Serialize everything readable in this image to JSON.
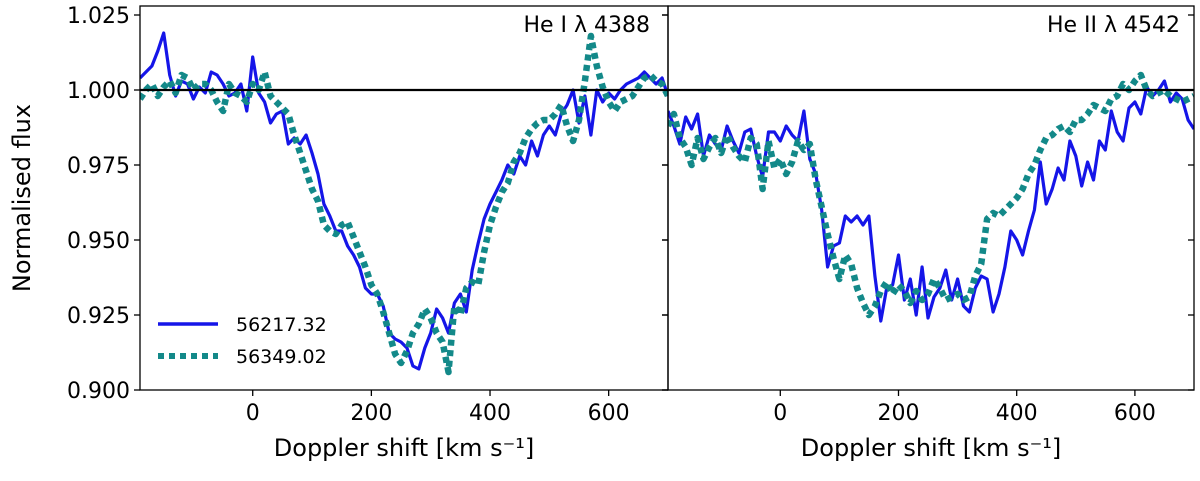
{
  "chart_data": [
    {
      "type": "line",
      "title": "He I λ 4388",
      "xlabel": "Doppler shift [km s⁻¹]",
      "ylabel": "Normalised flux",
      "xlim": [
        -190,
        700
      ],
      "ylim": [
        0.9,
        1.028
      ],
      "xticks": [
        0,
        200,
        400,
        600
      ],
      "yticks": [
        0.9,
        0.925,
        0.95,
        0.975,
        1.0,
        1.025
      ],
      "ytick_labels": [
        "0.900",
        "0.925",
        "0.950",
        "0.975",
        "1.000",
        "1.025"
      ],
      "reference_line": 1.0,
      "series": [
        {
          "name": "56217.32",
          "color": "#1515e8",
          "style": "solid",
          "x": [
            -190,
            -170,
            -160,
            -150,
            -140,
            -130,
            -120,
            -110,
            -100,
            -90,
            -80,
            -70,
            -60,
            -50,
            -40,
            -30,
            -20,
            -10,
            0,
            10,
            20,
            30,
            40,
            50,
            60,
            70,
            80,
            90,
            100,
            110,
            120,
            130,
            140,
            150,
            160,
            170,
            180,
            190,
            200,
            210,
            220,
            230,
            240,
            250,
            260,
            270,
            280,
            290,
            300,
            310,
            320,
            330,
            340,
            350,
            360,
            370,
            380,
            390,
            400,
            410,
            420,
            430,
            440,
            450,
            460,
            470,
            480,
            490,
            500,
            510,
            520,
            530,
            540,
            550,
            560,
            570,
            580,
            590,
            600,
            610,
            620,
            630,
            640,
            650,
            660,
            670,
            680,
            690,
            700
          ],
          "y": [
            1.004,
            1.008,
            1.013,
            1.019,
            1.005,
            0.998,
            1.003,
            1.002,
            0.997,
            1.001,
            0.999,
            1.006,
            1.005,
            1.002,
            0.998,
            0.999,
            1.002,
            0.993,
            1.011,
            0.999,
            0.996,
            0.989,
            0.992,
            0.993,
            0.982,
            0.984,
            0.982,
            0.985,
            0.979,
            0.972,
            0.962,
            0.958,
            0.953,
            0.953,
            0.948,
            0.945,
            0.941,
            0.934,
            0.932,
            0.932,
            0.928,
            0.919,
            0.917,
            0.916,
            0.914,
            0.908,
            0.907,
            0.914,
            0.919,
            0.927,
            0.924,
            0.919,
            0.929,
            0.932,
            0.926,
            0.94,
            0.949,
            0.957,
            0.962,
            0.966,
            0.97,
            0.975,
            0.972,
            0.978,
            0.975,
            0.983,
            0.978,
            0.985,
            0.988,
            0.985,
            0.992,
            0.995,
            1.0,
            0.989,
            0.998,
            0.985,
            1.0,
            0.996,
            0.999,
            0.997,
            1.0,
            1.002,
            1.003,
            1.004,
            1.006,
            1.004,
            1.002,
            1.004,
            0.998
          ]
        },
        {
          "name": "56349.02",
          "color": "#138989",
          "style": "dotted",
          "x": [
            -190,
            -180,
            -170,
            -160,
            -150,
            -140,
            -130,
            -120,
            -110,
            -100,
            -90,
            -80,
            -70,
            -60,
            -50,
            -40,
            -30,
            -20,
            -10,
            0,
            10,
            20,
            30,
            40,
            50,
            60,
            70,
            80,
            90,
            100,
            110,
            120,
            130,
            140,
            150,
            160,
            170,
            180,
            190,
            200,
            210,
            220,
            230,
            240,
            250,
            260,
            270,
            280,
            290,
            300,
            310,
            320,
            330,
            340,
            350,
            360,
            370,
            380,
            390,
            400,
            410,
            420,
            430,
            440,
            450,
            460,
            470,
            480,
            490,
            500,
            510,
            520,
            530,
            540,
            550,
            560,
            570,
            580,
            590,
            600,
            610,
            620,
            630,
            640,
            650,
            660,
            670,
            680,
            690,
            700
          ],
          "y": [
            0.997,
            1.0,
            1.002,
            0.998,
            1.001,
            1.003,
            0.999,
            1.005,
            1.004,
            1.0,
            1.002,
            1.002,
            1.0,
            0.996,
            0.993,
            1.002,
            0.999,
            0.998,
            0.996,
            1.002,
            1.0,
            1.006,
            0.998,
            0.996,
            0.994,
            0.992,
            0.985,
            0.979,
            0.973,
            0.967,
            0.963,
            0.955,
            0.953,
            0.952,
            0.955,
            0.956,
            0.951,
            0.946,
            0.941,
            0.935,
            0.932,
            0.926,
            0.919,
            0.912,
            0.909,
            0.913,
            0.919,
            0.922,
            0.927,
            0.924,
            0.919,
            0.916,
            0.906,
            0.928,
            0.925,
            0.934,
            0.936,
            0.935,
            0.946,
            0.955,
            0.961,
            0.966,
            0.969,
            0.976,
            0.979,
            0.984,
            0.987,
            0.989,
            0.99,
            0.99,
            0.992,
            0.995,
            0.988,
            0.983,
            0.99,
            1.003,
            1.018,
            1.008,
            1.001,
            0.996,
            0.993,
            0.996,
            0.997,
            0.998,
            1.001,
            1.004,
            1.005,
            1.003,
            1.002,
            0.998
          ]
        }
      ],
      "legend": {
        "placement": "lower-left",
        "entries": [
          "56217.32",
          "56349.02"
        ]
      }
    },
    {
      "type": "line",
      "title": "He II λ 4542",
      "xlabel": "Doppler shift [km s⁻¹]",
      "xlim": [
        -190,
        700
      ],
      "ylim": [
        0.9,
        1.028
      ],
      "xticks": [
        0,
        200,
        400,
        600
      ],
      "reference_line": 1.0,
      "series": [
        {
          "name": "56217.32",
          "color": "#1515e8",
          "style": "solid",
          "x": [
            -190,
            -180,
            -170,
            -160,
            -150,
            -140,
            -130,
            -120,
            -110,
            -100,
            -90,
            -80,
            -70,
            -60,
            -50,
            -40,
            -30,
            -20,
            -10,
            0,
            10,
            20,
            30,
            40,
            50,
            60,
            70,
            80,
            90,
            100,
            110,
            120,
            130,
            140,
            150,
            160,
            170,
            180,
            190,
            200,
            210,
            220,
            230,
            240,
            250,
            260,
            270,
            280,
            290,
            300,
            310,
            320,
            330,
            340,
            350,
            360,
            370,
            380,
            390,
            400,
            410,
            420,
            430,
            440,
            450,
            460,
            470,
            480,
            490,
            500,
            510,
            520,
            530,
            540,
            550,
            560,
            570,
            580,
            590,
            600,
            610,
            620,
            630,
            640,
            650,
            660,
            670,
            680,
            690,
            700
          ],
          "y": [
            0.993,
            0.988,
            0.982,
            0.991,
            0.987,
            0.992,
            0.978,
            0.985,
            0.982,
            0.98,
            0.988,
            0.983,
            0.979,
            0.986,
            0.987,
            0.978,
            0.971,
            0.986,
            0.986,
            0.983,
            0.988,
            0.985,
            0.983,
            0.993,
            0.977,
            0.972,
            0.96,
            0.941,
            0.948,
            0.949,
            0.958,
            0.956,
            0.958,
            0.955,
            0.958,
            0.938,
            0.923,
            0.934,
            0.935,
            0.945,
            0.93,
            0.937,
            0.925,
            0.941,
            0.924,
            0.931,
            0.934,
            0.94,
            0.93,
            0.937,
            0.928,
            0.926,
            0.934,
            0.938,
            0.937,
            0.926,
            0.932,
            0.941,
            0.953,
            0.95,
            0.945,
            0.953,
            0.96,
            0.976,
            0.962,
            0.967,
            0.974,
            0.97,
            0.983,
            0.978,
            0.968,
            0.976,
            0.97,
            0.983,
            0.98,
            0.993,
            0.986,
            0.983,
            0.994,
            0.996,
            0.992,
            1.001,
            0.998,
            1.0,
            1.003,
            0.996,
            0.999,
            0.997,
            0.99,
            0.987
          ]
        },
        {
          "name": "56349.02",
          "color": "#138989",
          "style": "dotted",
          "x": [
            -190,
            -180,
            -170,
            -160,
            -150,
            -140,
            -130,
            -120,
            -110,
            -100,
            -90,
            -80,
            -70,
            -60,
            -50,
            -40,
            -30,
            -20,
            -10,
            0,
            10,
            20,
            30,
            40,
            50,
            60,
            70,
            80,
            90,
            100,
            110,
            120,
            130,
            140,
            150,
            160,
            170,
            180,
            190,
            200,
            210,
            220,
            230,
            240,
            250,
            260,
            270,
            280,
            290,
            300,
            310,
            320,
            330,
            340,
            350,
            360,
            370,
            380,
            390,
            400,
            410,
            420,
            430,
            440,
            450,
            460,
            470,
            480,
            490,
            500,
            510,
            520,
            530,
            540,
            550,
            560,
            570,
            580,
            590,
            600,
            610,
            620,
            630,
            640,
            650,
            660,
            670,
            680,
            690,
            700
          ],
          "y": [
            0.988,
            0.992,
            0.984,
            0.981,
            0.975,
            0.984,
            0.977,
            0.981,
            0.984,
            0.979,
            0.985,
            0.981,
            0.978,
            0.976,
            0.984,
            0.982,
            0.967,
            0.983,
            0.974,
            0.977,
            0.972,
            0.976,
            0.983,
            0.98,
            0.982,
            0.97,
            0.961,
            0.952,
            0.944,
            0.937,
            0.945,
            0.942,
            0.934,
            0.929,
            0.925,
            0.928,
            0.933,
            0.936,
            0.932,
            0.935,
            0.933,
            0.929,
            0.933,
            0.93,
            0.932,
            0.937,
            0.934,
            0.93,
            0.931,
            0.932,
            0.93,
            0.931,
            0.938,
            0.942,
            0.957,
            0.959,
            0.958,
            0.96,
            0.962,
            0.964,
            0.967,
            0.972,
            0.975,
            0.98,
            0.984,
            0.985,
            0.987,
            0.988,
            0.986,
            0.99,
            0.99,
            0.992,
            0.995,
            0.994,
            0.993,
            0.997,
            0.998,
            1.002,
            1.0,
            1.003,
            1.005,
            1.0,
            0.998,
            0.999,
            1.0,
            0.998,
            0.997,
            0.996,
            0.997,
            0.998
          ]
        }
      ]
    }
  ]
}
